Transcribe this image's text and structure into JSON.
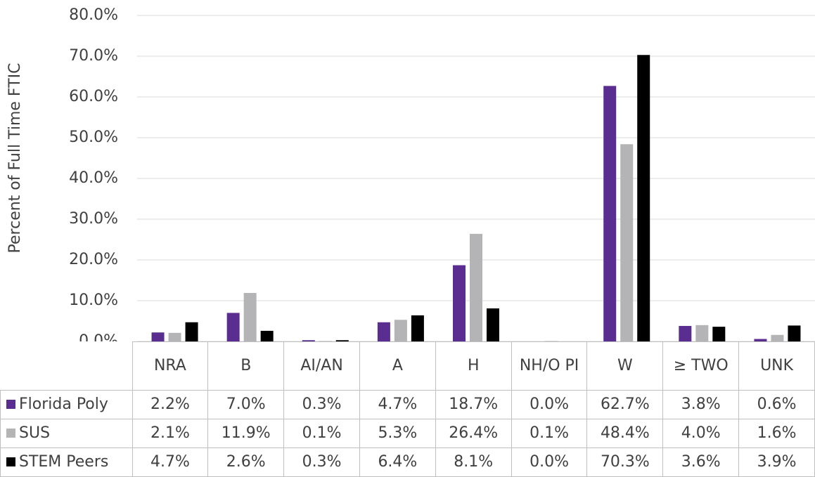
{
  "chart_data": {
    "type": "bar",
    "y_label": "Percent of Full Time FTIC",
    "categories": [
      "NRA",
      "B",
      "AI/AN",
      "A",
      "H",
      "NH/O PI",
      "W",
      "≥ TWO",
      "UNK"
    ],
    "series": [
      {
        "name": "Florida Poly",
        "color": "#5a2d91",
        "values": [
          2.2,
          7.0,
          0.3,
          4.7,
          18.7,
          0.0,
          62.7,
          3.8,
          0.6
        ],
        "value_labels": [
          "2.2%",
          "7.0%",
          "0.3%",
          "4.7%",
          "18.7%",
          "0.0%",
          "62.7%",
          "3.8%",
          "0.6%"
        ]
      },
      {
        "name": "SUS",
        "color": "#b4b4b6",
        "values": [
          2.1,
          11.9,
          0.1,
          5.3,
          26.4,
          0.1,
          48.4,
          4.0,
          1.6
        ],
        "value_labels": [
          "2.1%",
          "11.9%",
          "0.1%",
          "5.3%",
          "26.4%",
          "0.1%",
          "48.4%",
          "4.0%",
          "1.6%"
        ]
      },
      {
        "name": "STEM Peers",
        "color": "#000000",
        "values": [
          4.7,
          2.6,
          0.3,
          6.4,
          8.1,
          0.0,
          70.3,
          3.6,
          3.9
        ],
        "value_labels": [
          "4.7%",
          "2.6%",
          "0.3%",
          "6.4%",
          "8.1%",
          "0.0%",
          "70.3%",
          "3.6%",
          "3.9%"
        ]
      }
    ],
    "ylim": [
      0,
      80
    ],
    "yticks": [
      {
        "value": 0,
        "label": "0.0%"
      },
      {
        "value": 10,
        "label": "10.0%"
      },
      {
        "value": 20,
        "label": "20.0%"
      },
      {
        "value": 30,
        "label": "30.0%"
      },
      {
        "value": 40,
        "label": "40.0%"
      },
      {
        "value": 50,
        "label": "50.0%"
      },
      {
        "value": 60,
        "label": "60.0%"
      },
      {
        "value": 70,
        "label": "70.0%"
      },
      {
        "value": 80,
        "label": "80.0%"
      }
    ],
    "grid": true
  }
}
